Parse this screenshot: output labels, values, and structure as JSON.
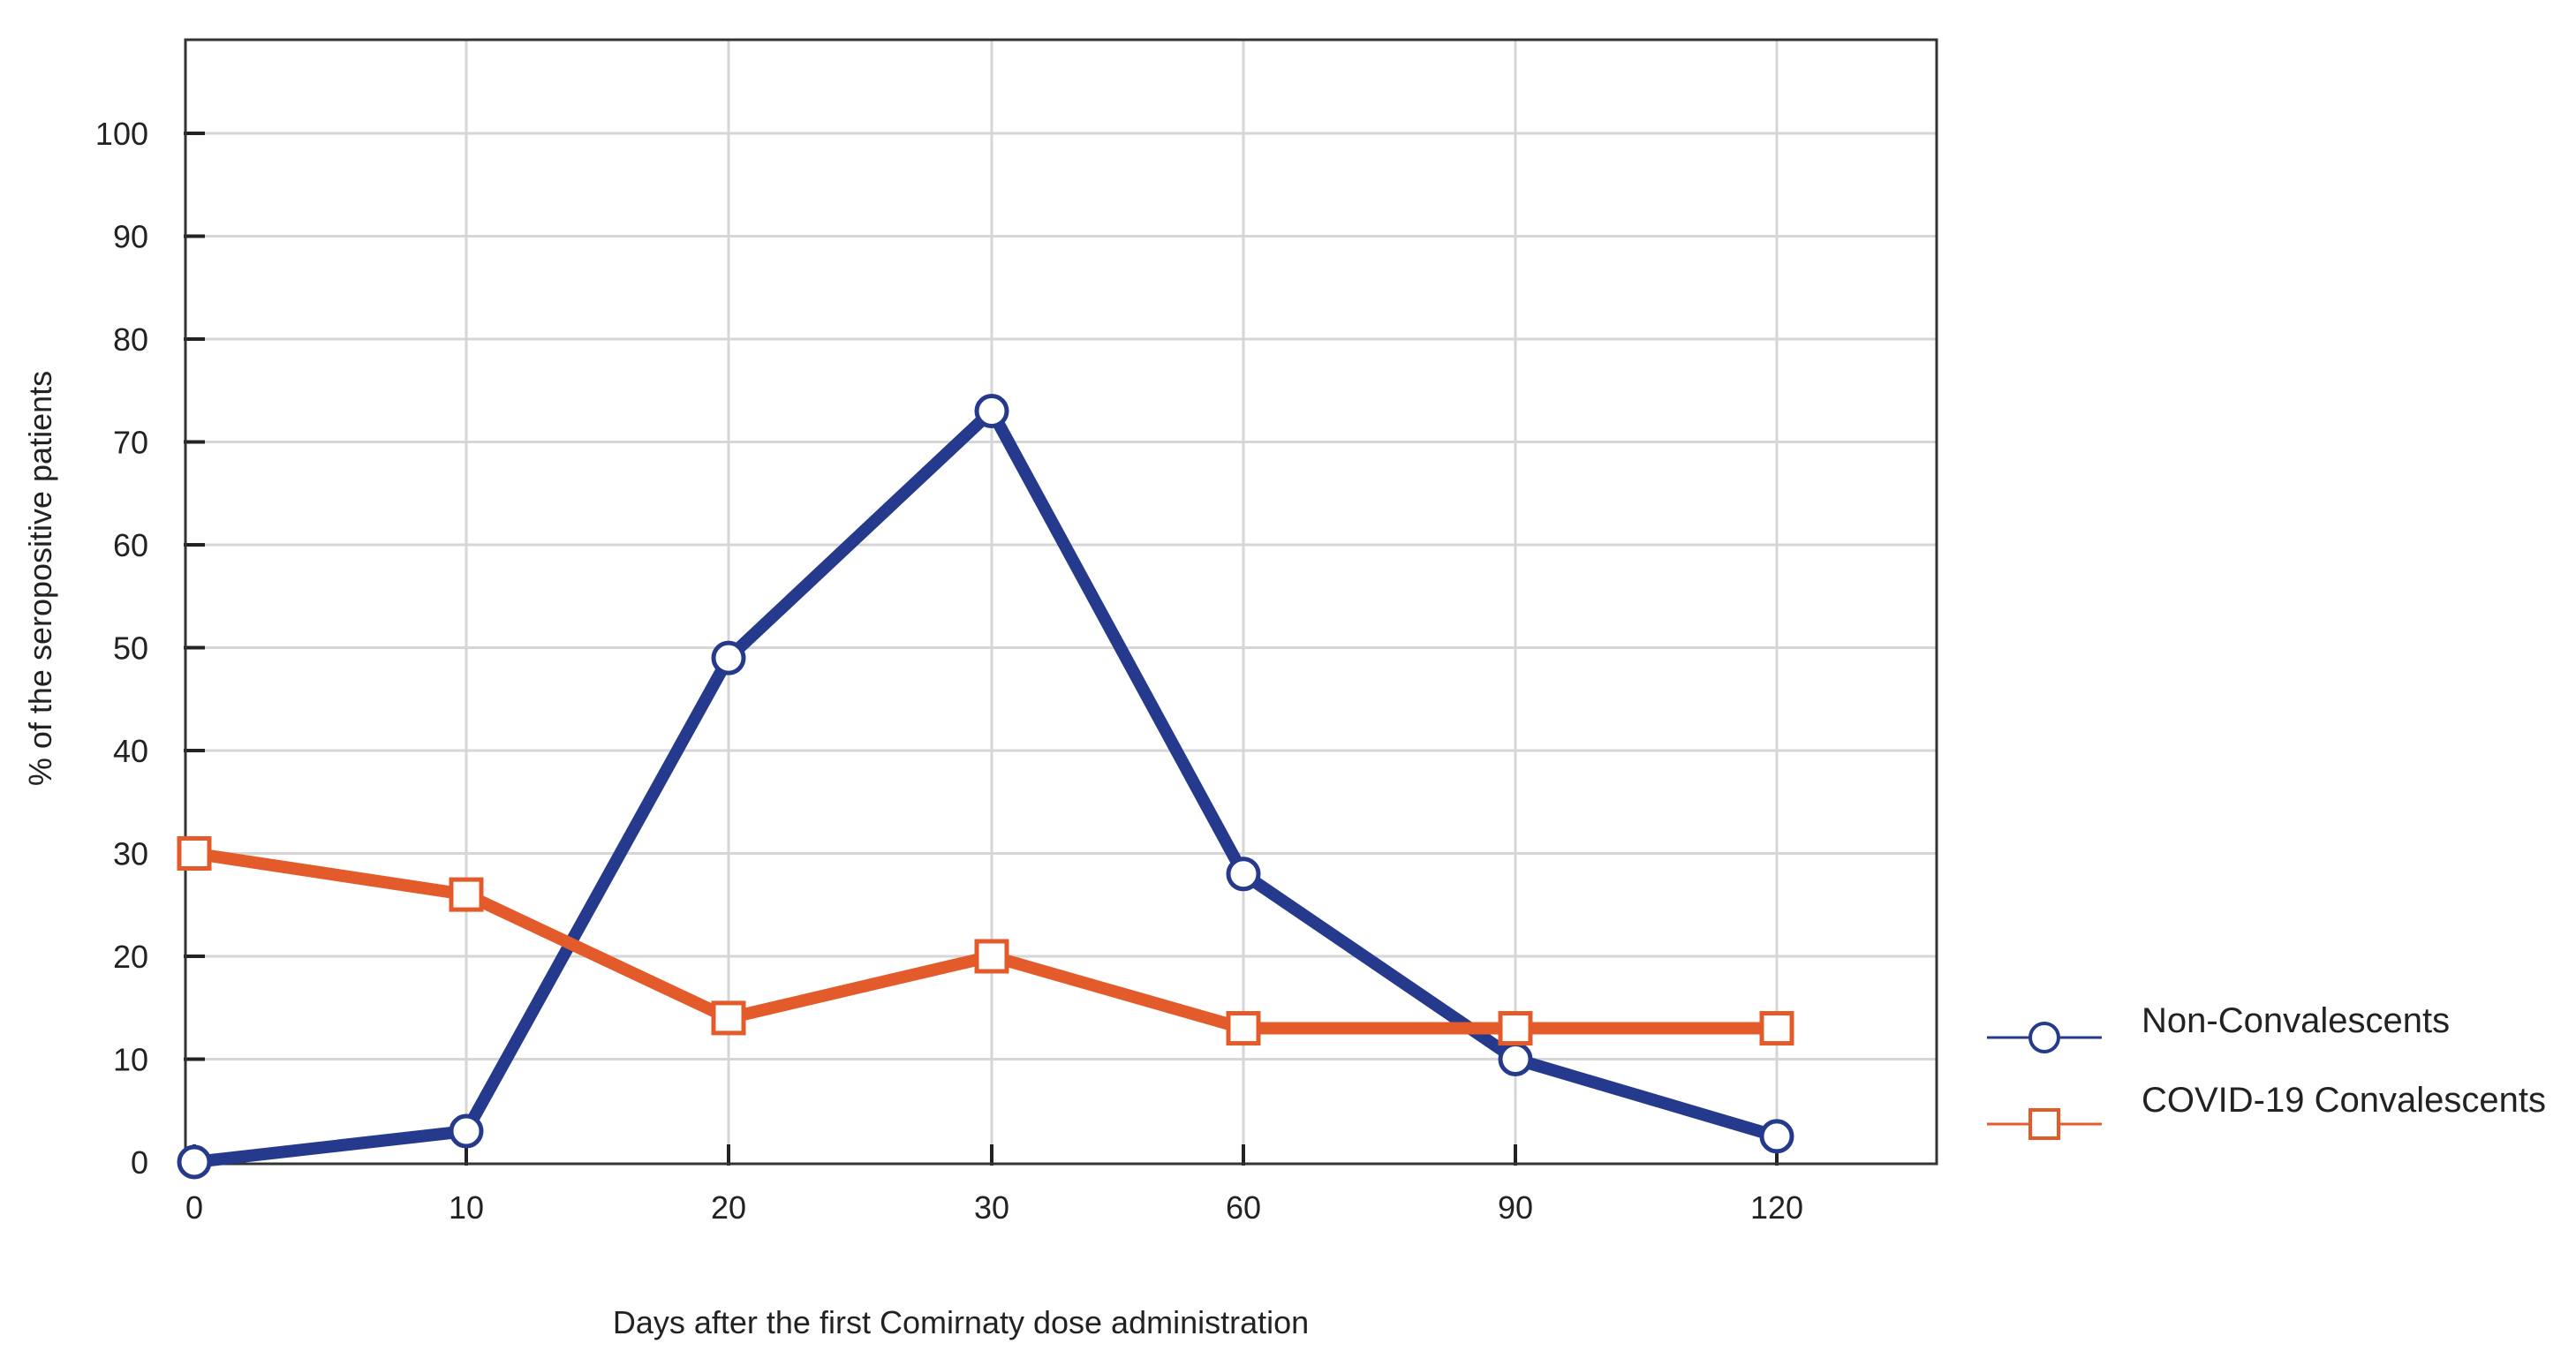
{
  "chart_data": {
    "type": "line",
    "title": "",
    "xlabel": "Days after the first Comirnaty dose administration",
    "ylabel": "% of the seropositive patients",
    "categories": [
      "0",
      "10",
      "20",
      "30",
      "60",
      "90",
      "120"
    ],
    "ylim": [
      0,
      100
    ],
    "yticks": [
      "0",
      "10",
      "20",
      "30",
      "40",
      "50",
      "60",
      "70",
      "80",
      "90",
      "100"
    ],
    "grid": true,
    "legend_position": "right",
    "series": [
      {
        "name": "Non-Convalescents",
        "color": "#253a8c",
        "marker": "circle",
        "values": [
          0,
          3,
          49,
          73,
          28,
          10,
          2.5
        ]
      },
      {
        "name": "COVID-19  Convalescents",
        "color": "#e35b2b",
        "marker": "square",
        "values": [
          30,
          26,
          14,
          20,
          13,
          13,
          13
        ]
      }
    ]
  }
}
